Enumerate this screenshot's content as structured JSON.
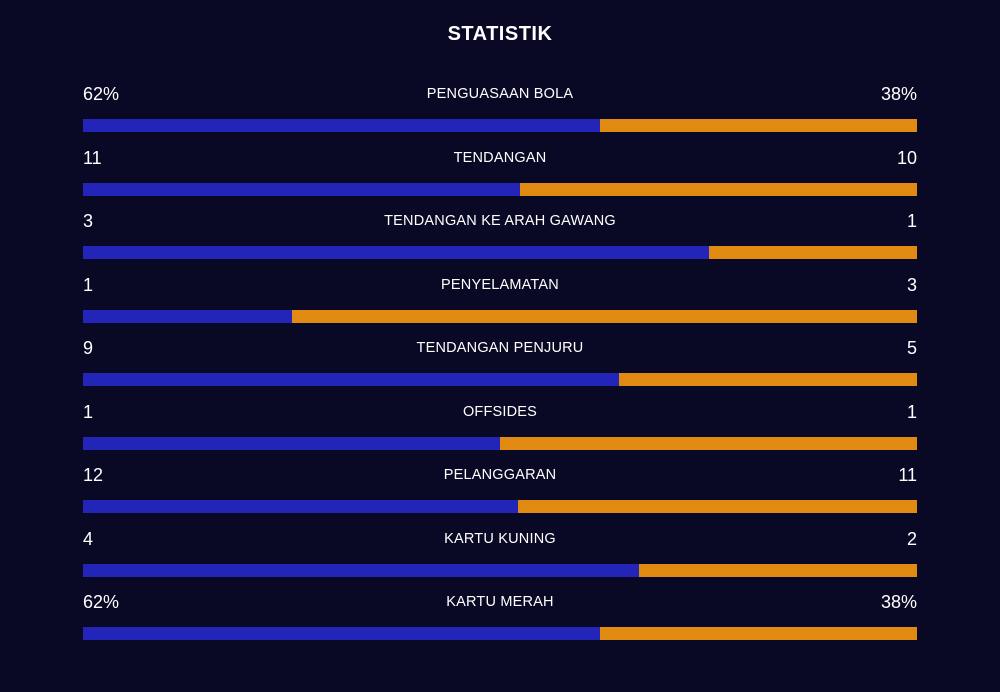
{
  "title": "STATISTIK",
  "colors": {
    "background": "#090925",
    "home": "#2225b8",
    "away": "#e08a12"
  },
  "stats": [
    {
      "label": "PENGUASAAN BOLA",
      "home": "62%",
      "away": "38%",
      "home_share": 0.62
    },
    {
      "label": "TENDANGAN",
      "home": "11",
      "away": "10",
      "home_share": 0.524
    },
    {
      "label": "TENDANGAN KE ARAH GAWANG",
      "home": "3",
      "away": "1",
      "home_share": 0.75
    },
    {
      "label": "PENYELAMATAN",
      "home": "1",
      "away": "3",
      "home_share": 0.25
    },
    {
      "label": "TENDANGAN PENJURU",
      "home": "9",
      "away": "5",
      "home_share": 0.643
    },
    {
      "label": "OFFSIDES",
      "home": "1",
      "away": "1",
      "home_share": 0.5
    },
    {
      "label": "PELANGGARAN",
      "home": "12",
      "away": "11",
      "home_share": 0.522
    },
    {
      "label": "KARTU KUNING",
      "home": "4",
      "away": "2",
      "home_share": 0.667
    },
    {
      "label": "KARTU MERAH",
      "home": "62%",
      "away": "38%",
      "home_share": 0.62
    }
  ]
}
